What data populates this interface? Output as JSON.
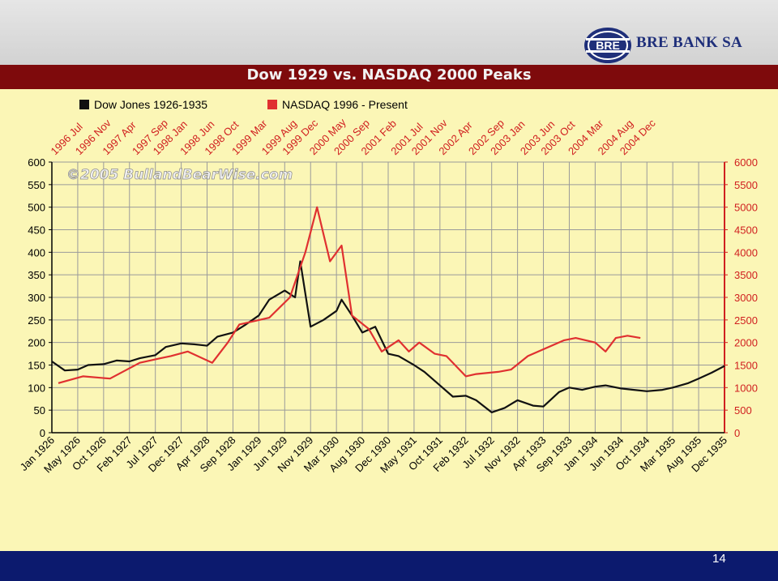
{
  "header": {
    "bank_name": "BRE BANK SA",
    "logo_text": "BRE"
  },
  "footer": {
    "page_number": "14"
  },
  "colors": {
    "dow": "#111111",
    "nasdaq": "#e03030",
    "title_bar": "#7e0a0c",
    "plot_bg": "#fbf6b6",
    "footer": "#0c1a6e"
  },
  "chart_data": {
    "type": "line",
    "title": "Dow 1929 vs. NASDAQ 2000 Peaks",
    "watermark": "©2005 BullandBearWise.com",
    "grid": true,
    "legend_placement": "top-left",
    "x_bottom_ticks": [
      "Jan 1926",
      "May 1926",
      "Oct 1926",
      "Feb 1927",
      "Jul 1927",
      "Dec 1927",
      "Apr 1928",
      "Sep 1928",
      "Jan 1929",
      "Jun 1929",
      "Nov 1929",
      "Mar 1930",
      "Aug 1930",
      "Dec 1930",
      "May 1931",
      "Oct 1931",
      "Feb 1932",
      "Jul 1932",
      "Nov 1932",
      "Apr 1933",
      "Sep 1933",
      "Jan 1934",
      "Jun 1934",
      "Oct 1934",
      "Mar 1935",
      "Aug 1935",
      "Dec 1935"
    ],
    "x_top_ticks": [
      "1996 Jul",
      "1996 Nov",
      "1997 Apr",
      "1997 Sep",
      "1998 Jan",
      "1998 Jun",
      "1998 Oct",
      "1999 Mar",
      "1999 Aug",
      "1999 Dec",
      "2000 May",
      "2000 Sep",
      "2001 Feb",
      "2001 Jul",
      "2001 Nov",
      "2002 Apr",
      "2002 Sep",
      "2003 Jan",
      "2003 Jun",
      "2003 Oct",
      "2004 Mar",
      "2004 Aug",
      "2004 Dec"
    ],
    "y_left_ticks": [
      "600",
      "550",
      "500",
      "450",
      "400",
      "350",
      "300",
      "250",
      "200",
      "150",
      "100",
      "50",
      "0"
    ],
    "y_right_ticks": [
      "6000",
      "5500",
      "5000",
      "4500",
      "4000",
      "3500",
      "3000",
      "2500",
      "2000",
      "1500",
      "1000",
      "500",
      "0"
    ],
    "y_left_range": [
      0,
      600
    ],
    "y_right_range": [
      0,
      6000
    ],
    "series": [
      {
        "name": "Dow Jones 1926-1935",
        "axis": "left",
        "x": [
          "Jan 1926",
          "Mar 1926",
          "May 1926",
          "Jul 1926",
          "Oct 1926",
          "Dec 1926",
          "Feb 1927",
          "Apr 1927",
          "Jul 1927",
          "Sep 1927",
          "Dec 1927",
          "Feb 1928",
          "Apr 1928",
          "Jun 1928",
          "Sep 1928",
          "Nov 1928",
          "Jan 1929",
          "Mar 1929",
          "Jun 1929",
          "Aug 1929",
          "Sep 1929",
          "Nov 1929",
          "Jan 1930",
          "Mar 1930",
          "Apr 1930",
          "Jun 1930",
          "Aug 1930",
          "Oct 1930",
          "Dec 1930",
          "Feb 1931",
          "May 1931",
          "Jul 1931",
          "Oct 1931",
          "Dec 1931",
          "Feb 1932",
          "Apr 1932",
          "Jul 1932",
          "Sep 1932",
          "Nov 1932",
          "Feb 1933",
          "Apr 1933",
          "Jul 1933",
          "Sep 1933",
          "Nov 1933",
          "Jan 1934",
          "Mar 1934",
          "Jun 1934",
          "Aug 1934",
          "Oct 1934",
          "Jan 1935",
          "Mar 1935",
          "Jun 1935",
          "Aug 1935",
          "Oct 1935",
          "Dec 1935"
        ],
        "values": [
          158,
          138,
          140,
          150,
          152,
          160,
          158,
          165,
          172,
          190,
          198,
          196,
          193,
          213,
          222,
          240,
          260,
          295,
          315,
          300,
          380,
          235,
          250,
          270,
          295,
          260,
          222,
          235,
          175,
          170,
          150,
          135,
          105,
          80,
          82,
          72,
          45,
          55,
          72,
          60,
          58,
          90,
          100,
          95,
          102,
          105,
          98,
          95,
          92,
          95,
          100,
          110,
          120,
          133,
          148
        ]
      },
      {
        "name": "NASDAQ 1996 - Present",
        "axis": "right",
        "x": [
          "1996 Jul",
          "1996 Nov",
          "1997 Apr",
          "1997 Sep",
          "1998 Jan",
          "1998 Mar",
          "1998 Jun",
          "1998 Oct",
          "1999 Jan",
          "1999 Mar",
          "1999 Aug",
          "1999 Dec",
          "2000 Mar",
          "2000 May",
          "2000 Jul",
          "2000 Sep",
          "2000 Nov",
          "2001 Feb",
          "2001 Apr",
          "2001 Jul",
          "2001 Sep",
          "2001 Nov",
          "2002 Feb",
          "2002 Apr",
          "2002 Jul",
          "2002 Sep",
          "2003 Jan",
          "2003 Mar",
          "2003 Jun",
          "2003 Oct",
          "2004 Jan",
          "2004 Mar",
          "2004 Jun",
          "2004 Aug",
          "2004 Oct",
          "2004 Dec",
          "2005 Feb"
        ],
        "values": [
          1100,
          1250,
          1200,
          1550,
          1650,
          1700,
          1800,
          1550,
          2000,
          2400,
          2550,
          3000,
          4000,
          5000,
          3800,
          4150,
          2600,
          2300,
          1800,
          2050,
          1800,
          2000,
          1750,
          1700,
          1250,
          1300,
          1350,
          1400,
          1700,
          1900,
          2050,
          2100,
          2000,
          1800,
          2100,
          2150,
          2100
        ]
      }
    ]
  }
}
